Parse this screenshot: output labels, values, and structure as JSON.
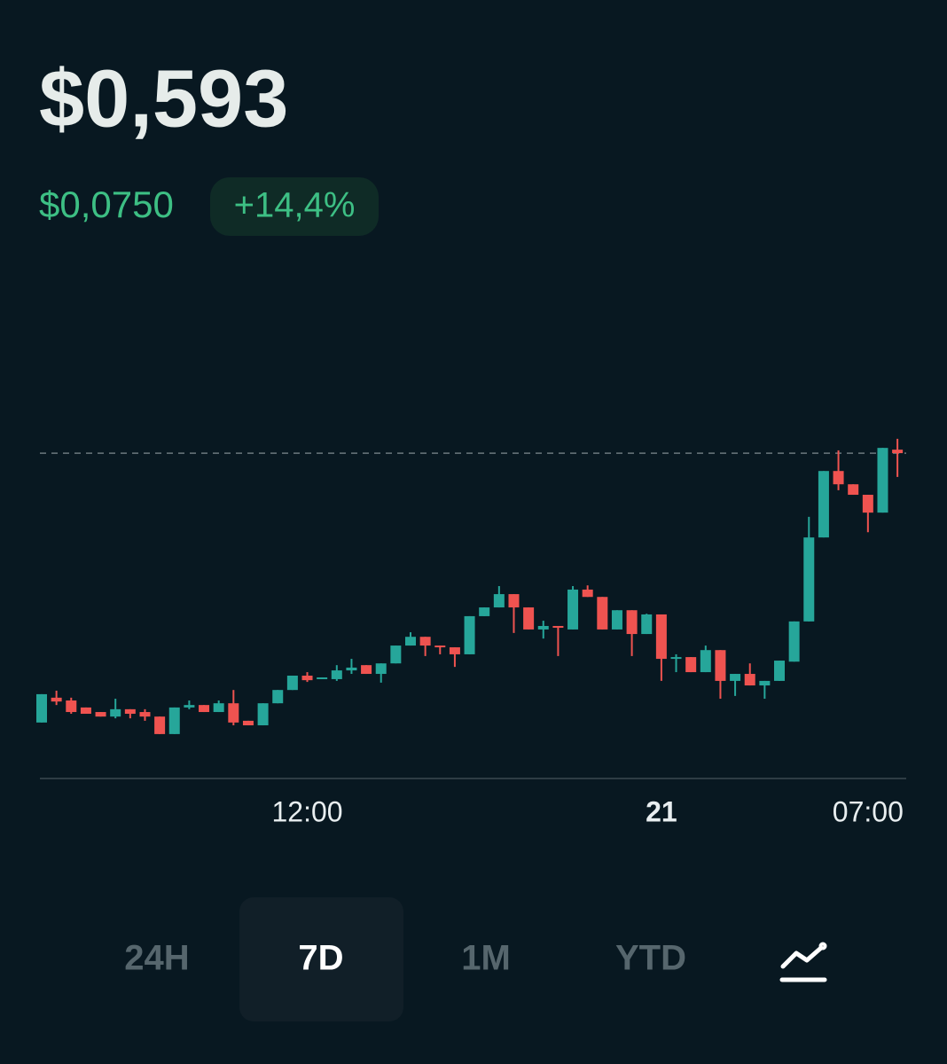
{
  "header": {
    "price": "$0,593",
    "change": "$0,0750",
    "change_percent": "+14,4%"
  },
  "chart_data": {
    "type": "candlestick",
    "categories": [
      null,
      null,
      null,
      null,
      null,
      null,
      null,
      null,
      null,
      null,
      null,
      null,
      null,
      null,
      null,
      null,
      null,
      null,
      "12:00",
      null,
      null,
      null,
      null,
      null,
      null,
      null,
      null,
      null,
      null,
      null,
      null,
      null,
      null,
      null,
      null,
      null,
      null,
      null,
      null,
      null,
      null,
      null,
      "21",
      null,
      null,
      null,
      null,
      null,
      null,
      null,
      null,
      null,
      null,
      null,
      null,
      null,
      "07:00",
      null,
      null
    ],
    "open": [
      0.516,
      0.5231,
      0.5223,
      0.5203,
      0.519,
      0.5177,
      0.5198,
      0.519,
      0.5177,
      0.5127,
      0.5203,
      0.521,
      0.519,
      0.5215,
      0.5165,
      0.5152,
      0.5215,
      0.5253,
      0.5294,
      0.5284,
      0.5284,
      0.5309,
      0.5324,
      0.5299,
      0.5329,
      0.538,
      0.5405,
      0.538,
      0.5375,
      0.5355,
      0.5464,
      0.5489,
      0.5527,
      0.5489,
      0.5426,
      0.5436,
      0.5426,
      0.554,
      0.5519,
      0.5426,
      0.5481,
      0.5413,
      0.5469,
      0.5342,
      0.5347,
      0.5304,
      0.5367,
      0.5279,
      0.5299,
      0.5266,
      0.5279,
      0.5334,
      0.5449,
      0.5689,
      0.5879,
      0.5841,
      0.5811,
      0.576,
      0.594
    ],
    "high": [
      0.5241,
      0.5251,
      0.5231,
      0.5203,
      0.519,
      0.5228,
      0.5198,
      0.5198,
      0.5177,
      0.5203,
      0.5223,
      0.521,
      0.5223,
      0.5253,
      0.5165,
      0.5215,
      0.5253,
      0.5294,
      0.5304,
      0.5289,
      0.5324,
      0.5342,
      0.5324,
      0.5329,
      0.538,
      0.5418,
      0.5405,
      0.538,
      0.5375,
      0.5464,
      0.5489,
      0.555,
      0.5527,
      0.5489,
      0.5451,
      0.5436,
      0.555,
      0.5552,
      0.5519,
      0.5481,
      0.5481,
      0.5471,
      0.5469,
      0.5355,
      0.5347,
      0.538,
      0.5367,
      0.5299,
      0.5329,
      0.5279,
      0.5337,
      0.5449,
      0.5748,
      0.5879,
      0.5938,
      0.5841,
      0.5811,
      0.5945,
      0.5971
    ],
    "low": [
      0.516,
      0.521,
      0.5185,
      0.5185,
      0.5177,
      0.5172,
      0.5172,
      0.5165,
      0.5127,
      0.5127,
      0.5198,
      0.519,
      0.519,
      0.5152,
      0.5152,
      0.5152,
      0.5215,
      0.5253,
      0.5276,
      0.5284,
      0.5279,
      0.5299,
      0.5299,
      0.5274,
      0.5329,
      0.538,
      0.535,
      0.5355,
      0.5319,
      0.5355,
      0.5464,
      0.5489,
      0.5416,
      0.5426,
      0.54,
      0.535,
      0.5426,
      0.5519,
      0.5426,
      0.5426,
      0.535,
      0.5413,
      0.5279,
      0.5304,
      0.5304,
      0.5304,
      0.5228,
      0.5236,
      0.5266,
      0.5228,
      0.5279,
      0.5334,
      0.5449,
      0.5689,
      0.5824,
      0.5811,
      0.5704,
      0.576,
      0.5862
    ],
    "close": [
      0.5241,
      0.522,
      0.519,
      0.5185,
      0.5177,
      0.5198,
      0.5185,
      0.5177,
      0.5127,
      0.5203,
      0.521,
      0.519,
      0.5215,
      0.516,
      0.5152,
      0.5215,
      0.5253,
      0.5294,
      0.5281,
      0.5289,
      0.5309,
      0.5317,
      0.5299,
      0.5329,
      0.538,
      0.5405,
      0.538,
      0.5375,
      0.5355,
      0.5464,
      0.5489,
      0.5527,
      0.5489,
      0.5426,
      0.5436,
      0.5431,
      0.554,
      0.5519,
      0.5426,
      0.5481,
      0.5413,
      0.5469,
      0.5342,
      0.5347,
      0.5304,
      0.5367,
      0.5279,
      0.5299,
      0.5266,
      0.5279,
      0.5337,
      0.5449,
      0.5689,
      0.5879,
      0.5841,
      0.5811,
      0.576,
      0.5945,
      0.593
    ],
    "ylim": [
      0.5,
      0.61
    ],
    "up_color": "#26a69a",
    "down_color": "#ef5350"
  },
  "range_buttons": {
    "options": [
      "24H",
      "7D",
      "1M",
      "YTD"
    ],
    "selected": "7D"
  }
}
